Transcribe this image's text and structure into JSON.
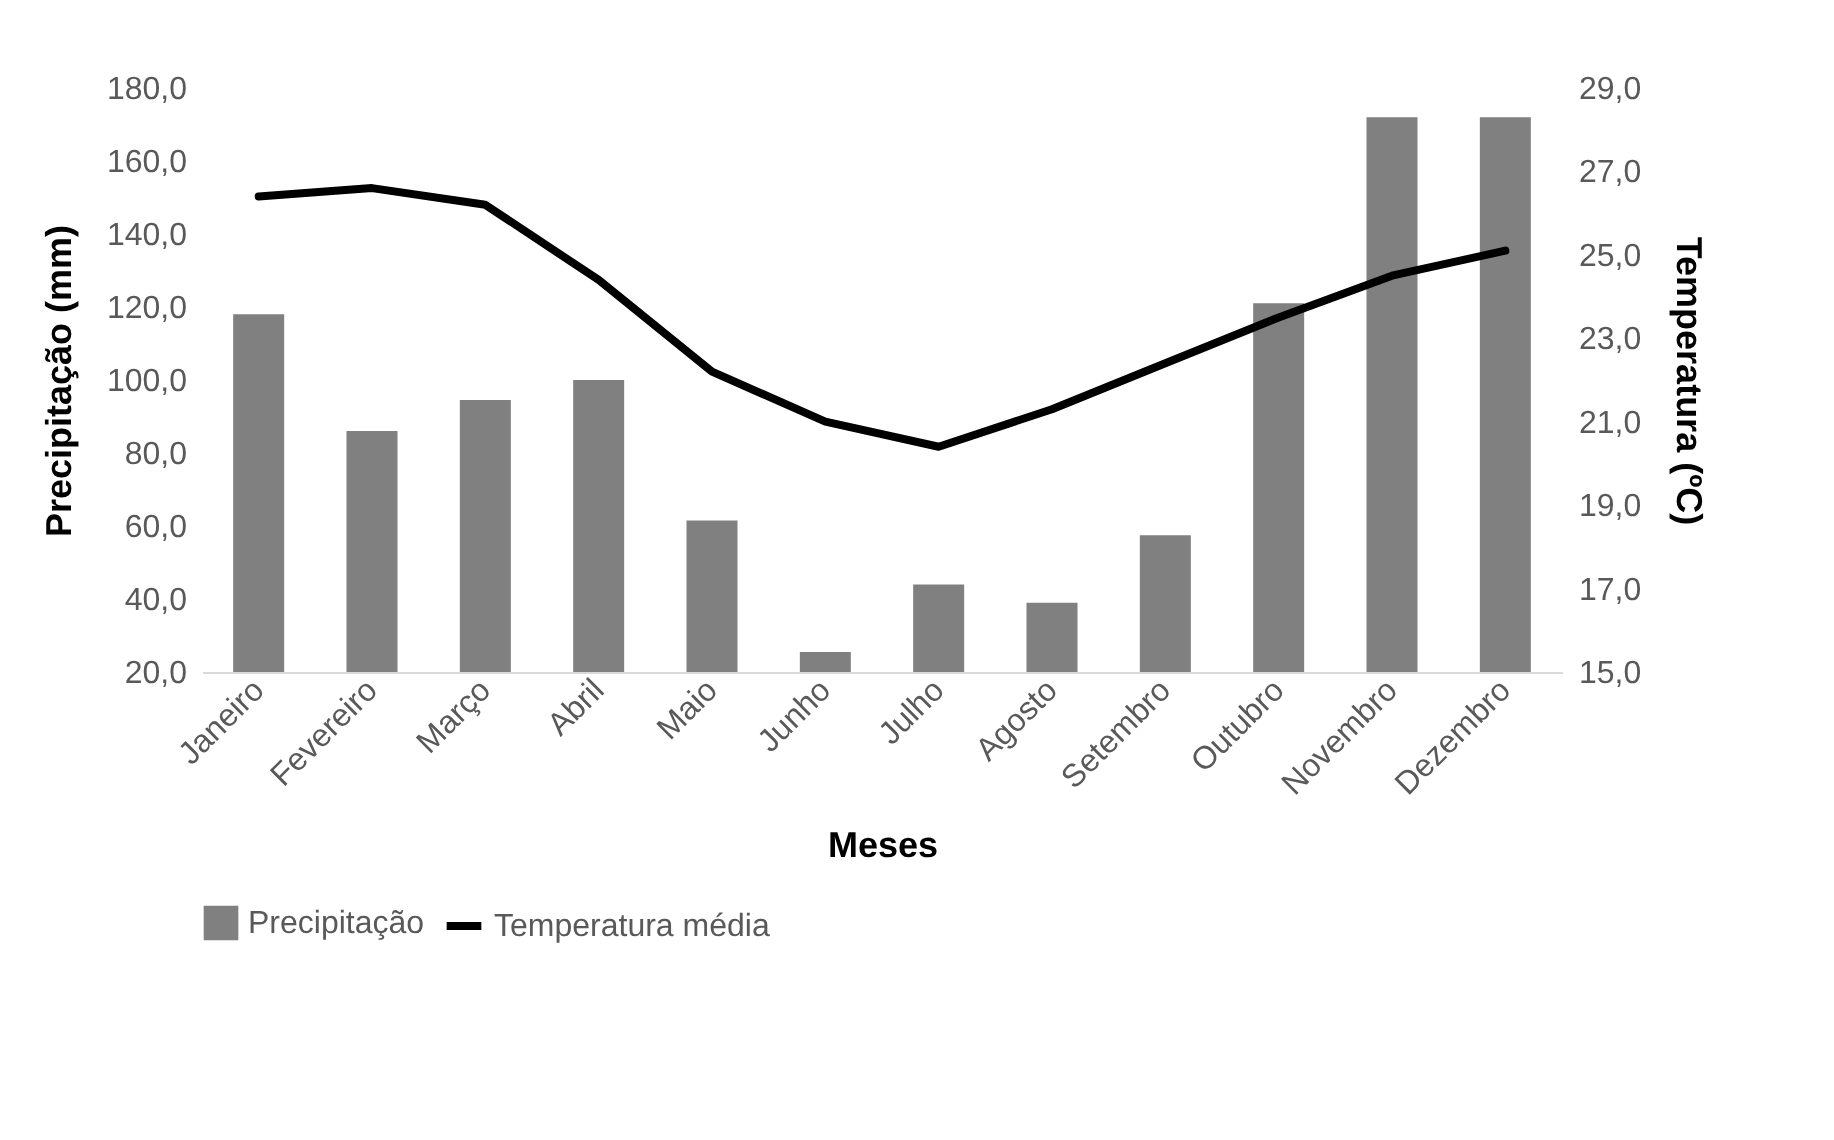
{
  "chart_data": {
    "type": "bar",
    "xlabel": "Meses",
    "ylabel": "Precipitação (mm)",
    "y2label": "Temperatura (ºC)",
    "categories": [
      "Janeiro",
      "Fevereiro",
      "Março",
      "Abril",
      "Maio",
      "Junho",
      "Julho",
      "Agosto",
      "Setembro",
      "Outubro",
      "Novembro",
      "Dezembro"
    ],
    "series": [
      {
        "name": "Precipitação",
        "color": "#808080",
        "values": [
          118,
          86,
          94.5,
          100,
          61.5,
          25.5,
          44,
          39,
          57.5,
          121,
          172,
          172
        ]
      },
      {
        "name": "Temperatura média",
        "type": "line",
        "axis": "y2",
        "color": "#000000",
        "values": [
          26.4,
          26.6,
          26.2,
          24.4,
          22.2,
          21.0,
          20.4,
          21.3,
          22.4,
          23.5,
          24.5,
          25.1
        ]
      }
    ],
    "ylim": [
      20,
      180
    ],
    "yticks": [
      {
        "value": 20,
        "label": "20,0"
      },
      {
        "value": 40,
        "label": "40,0"
      },
      {
        "value": 60,
        "label": "60,0"
      },
      {
        "value": 80,
        "label": "80,0"
      },
      {
        "value": 100,
        "label": "100,0"
      },
      {
        "value": 120,
        "label": "120,0"
      },
      {
        "value": 140,
        "label": "140,0"
      },
      {
        "value": 160,
        "label": "160,0"
      },
      {
        "value": 180,
        "label": "180,0"
      }
    ],
    "y2lim": [
      15,
      29
    ],
    "y2ticks": [
      {
        "value": 15,
        "label": "15,0"
      },
      {
        "value": 17,
        "label": "17,0"
      },
      {
        "value": 19,
        "label": "19,0"
      },
      {
        "value": 21,
        "label": "21,0"
      },
      {
        "value": 23,
        "label": "23,0"
      },
      {
        "value": 25,
        "label": "25,0"
      },
      {
        "value": 27,
        "label": "27,0"
      },
      {
        "value": 29,
        "label": "29,0"
      }
    ],
    "grid": false,
    "legend": "bottom",
    "marker": "none",
    "line_style": "solid"
  }
}
